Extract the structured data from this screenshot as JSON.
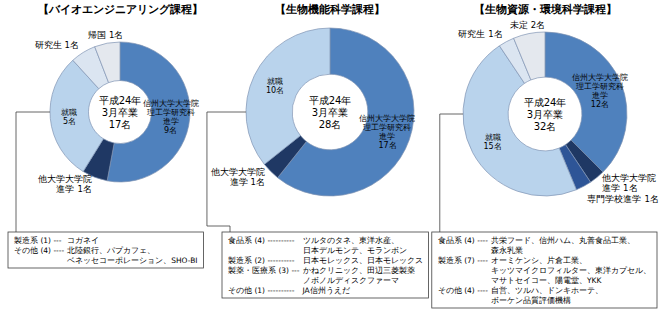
{
  "chart_data": [
    {
      "type": "pie",
      "title": "【バイオエンジニアリング課程】",
      "center_label": [
        "平成24年",
        "3月卒業"
      ],
      "total": 17,
      "total_label": "17名",
      "categories": [
        "信州大学大学院\n理工学研究科\n進学",
        "他大学大学院\n進学",
        "就職",
        "研究生",
        "帰国"
      ],
      "values": [
        9,
        1,
        5,
        1,
        1
      ],
      "value_labels": [
        "9名",
        "1名",
        "5名",
        "1名",
        "1名"
      ],
      "colors": [
        "#4f81bd",
        "#1f3864",
        "#b9d3ec",
        "#dbe5f1",
        "#e4e8ee"
      ],
      "data_labels": true,
      "annotation": {
        "items": [
          {
            "head": "製造系 (1) ---",
            "text": [
              "コガネイ"
            ]
          },
          {
            "head": "その他 (4) ----",
            "text": [
              "北陸銀行、パプカフェ、",
              "ベネッセコーポレーション、SHO-BI"
            ]
          }
        ]
      }
    },
    {
      "type": "pie",
      "title": "【生物機能科学課程】",
      "center_label": [
        "平成24年",
        "3月卒業"
      ],
      "total": 28,
      "total_label": "28名",
      "categories": [
        "信州大学大学院\n理工学研究科\n進学",
        "他大学大学院\n進学",
        "就職"
      ],
      "values": [
        17,
        1,
        10
      ],
      "value_labels": [
        "17名",
        "1名",
        "10名"
      ],
      "colors": [
        "#4f81bd",
        "#1f3864",
        "#b9d3ec"
      ],
      "data_labels": true,
      "annotation": {
        "items": [
          {
            "head": "食品系 (4) ----------",
            "text": [
              "ツルタのタネ、東洋水産、",
              "日本デルモンテ、モランボン"
            ]
          },
          {
            "head": "製造系 (2) ----------",
            "text": [
              "日本モレックス、日本モレックス"
            ]
          },
          {
            "head": "製薬・医療系 (3) ---",
            "text": [
              "かねクリニック、田辺三菱製薬",
              "ノボノルディスクファーマ"
            ]
          },
          {
            "head": "その他 (1) ----------",
            "text": [
              "JA信州うえだ"
            ]
          }
        ]
      }
    },
    {
      "type": "pie",
      "title": "【生物資源・環境科学課程】",
      "center_label": [
        "平成24年",
        "3月卒業"
      ],
      "total": 32,
      "total_label": "32名",
      "categories": [
        "信州大学大学院\n理工学研究科\n進学",
        "他大学大学院\n進学",
        "専門学校進学",
        "就職",
        "研究生",
        "未定"
      ],
      "values": [
        12,
        1,
        1,
        15,
        1,
        2
      ],
      "value_labels": [
        "12名",
        "1名",
        "1名",
        "15名",
        "1名",
        "2名"
      ],
      "colors": [
        "#4f81bd",
        "#1f3864",
        "#2e5597",
        "#b9d3ec",
        "#dbe5f1",
        "#e4e8ee"
      ],
      "data_labels": true,
      "annotation": {
        "items": [
          {
            "head": "食品系 (4) ----",
            "text": [
              "共栄フード、信州ハム、丸善食品工業、",
              "森永乳業"
            ]
          },
          {
            "head": "製造系 (7) ----",
            "text": [
              "オーミケンシ、片倉工業、",
              "キッツマイクロフィルター、東洋カプセル、",
              "マサトセイコー、陽電堂、YKK"
            ]
          },
          {
            "head": "その他 (4) ----",
            "text": [
              "自営、ツルハ、ドンキホーテ、",
              "ボーケン品質評価機構"
            ]
          }
        ]
      }
    }
  ]
}
